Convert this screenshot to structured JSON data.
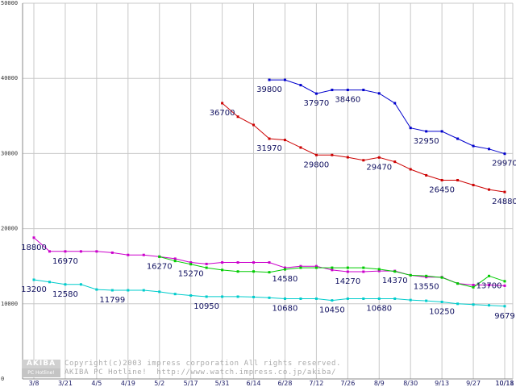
{
  "chart_data": {
    "type": "line",
    "title": "",
    "xlabel": "",
    "ylabel": "",
    "ylim": [
      0,
      50000
    ],
    "grid": true,
    "y_ticks": [
      "0",
      "10000",
      "20000",
      "30000",
      "40000",
      "50000"
    ],
    "x_tick_labels": [
      "3/8",
      "3/21",
      "4/5",
      "4/19",
      "5/2",
      "5/17",
      "5/31",
      "6/14",
      "6/28",
      "7/12",
      "7/26",
      "8/9",
      "8/30",
      "9/13",
      "9/27",
      "10/11",
      "10/18"
    ],
    "series": [
      {
        "name": "blue",
        "color": "#0000cc",
        "x": [
          15,
          16,
          17,
          18,
          19,
          20,
          21,
          22,
          23,
          24,
          25,
          26,
          27,
          28,
          29,
          30
        ],
        "values": [
          39800,
          39800,
          39100,
          37970,
          38460,
          38460,
          38460,
          38000,
          36700,
          33400,
          32950,
          32950,
          31970,
          31000,
          30600,
          29970
        ],
        "labels": [
          {
            "i": 0,
            "text": "39800"
          },
          {
            "i": 3,
            "text": "37970"
          },
          {
            "i": 5,
            "text": "38460"
          },
          {
            "i": 10,
            "text": "32950"
          },
          {
            "i": 15,
            "text": "29970"
          }
        ]
      },
      {
        "name": "red",
        "color": "#cc0000",
        "x": [
          12,
          13,
          14,
          15,
          16,
          17,
          18,
          19,
          20,
          21,
          22,
          23,
          24,
          25,
          26,
          27,
          28,
          29,
          30
        ],
        "values": [
          36700,
          34900,
          33800,
          31970,
          31800,
          30800,
          29800,
          29800,
          29500,
          29100,
          29470,
          28900,
          27900,
          27100,
          26450,
          26450,
          25800,
          25200,
          24880
        ],
        "labels": [
          {
            "i": 0,
            "text": "36700"
          },
          {
            "i": 3,
            "text": "31970"
          },
          {
            "i": 6,
            "text": "29800"
          },
          {
            "i": 10,
            "text": "29470"
          },
          {
            "i": 14,
            "text": "26450"
          },
          {
            "i": 18,
            "text": "24880"
          }
        ]
      },
      {
        "name": "magenta",
        "color": "#cc00cc",
        "x": [
          0,
          1,
          2,
          3,
          4,
          5,
          6,
          7,
          8,
          9,
          10,
          11,
          12,
          13,
          14,
          15,
          16,
          17,
          18,
          19,
          20,
          21,
          22,
          23,
          24,
          25,
          26,
          27,
          28,
          29,
          30
        ],
        "values": [
          18800,
          16970,
          16970,
          16970,
          16970,
          16800,
          16500,
          16500,
          16270,
          16000,
          15500,
          15300,
          15500,
          15500,
          15500,
          15500,
          14800,
          15000,
          15000,
          14500,
          14270,
          14270,
          14370,
          14370,
          13800,
          13550,
          13550,
          12700,
          12500,
          12500,
          12400
        ],
        "labels": [
          {
            "i": 0,
            "text": "18800"
          },
          {
            "i": 2,
            "text": "16970"
          },
          {
            "i": 20,
            "text": "14270"
          },
          {
            "i": 23,
            "text": "14370"
          },
          {
            "i": 25,
            "text": "13550"
          }
        ]
      },
      {
        "name": "green",
        "color": "#00cc00",
        "x": [
          8,
          9,
          10,
          11,
          12,
          13,
          14,
          15,
          16,
          17,
          18,
          19,
          20,
          21,
          22,
          23,
          24,
          25,
          26,
          27,
          28,
          29,
          30
        ],
        "values": [
          16270,
          15700,
          15270,
          14800,
          14500,
          14300,
          14300,
          14200,
          14580,
          14800,
          14800,
          14800,
          14800,
          14800,
          14600,
          14300,
          13800,
          13700,
          13500,
          12700,
          12200,
          13700,
          13000
        ],
        "labels": [
          {
            "i": 0,
            "text": "16270"
          },
          {
            "i": 2,
            "text": "15270"
          },
          {
            "i": 8,
            "text": "14580"
          },
          {
            "i": 21,
            "text": "13700"
          }
        ]
      },
      {
        "name": "cyan",
        "color": "#00cccc",
        "x": [
          0,
          1,
          2,
          3,
          4,
          5,
          6,
          7,
          8,
          9,
          10,
          11,
          12,
          13,
          14,
          15,
          16,
          17,
          18,
          19,
          20,
          21,
          22,
          23,
          24,
          25,
          26,
          27,
          28,
          29,
          30
        ],
        "values": [
          13200,
          12900,
          12580,
          12580,
          11900,
          11799,
          11799,
          11799,
          11600,
          11300,
          11100,
          10950,
          10950,
          10950,
          10900,
          10800,
          10680,
          10680,
          10680,
          10450,
          10680,
          10680,
          10680,
          10680,
          10500,
          10400,
          10250,
          10000,
          9900,
          9800,
          9679
        ],
        "labels": [
          {
            "i": 0,
            "text": "13200"
          },
          {
            "i": 2,
            "text": "12580"
          },
          {
            "i": 5,
            "text": "11799"
          },
          {
            "i": 11,
            "text": "10950"
          },
          {
            "i": 16,
            "text": "10680"
          },
          {
            "i": 19,
            "text": "10450"
          },
          {
            "i": 22,
            "text": "10680"
          },
          {
            "i": 26,
            "text": "10250"
          },
          {
            "i": 30,
            "text": "9679"
          }
        ]
      }
    ]
  },
  "logo": {
    "line1": "AKIBA",
    "line2": "PC Hotline!"
  },
  "copyright": {
    "line1": "Copyright(c)2003 impress corporation All rights reserved.",
    "line2": "AKIBA PC Hotline!  http://www.watch.impress.co.jp/akiba/"
  }
}
